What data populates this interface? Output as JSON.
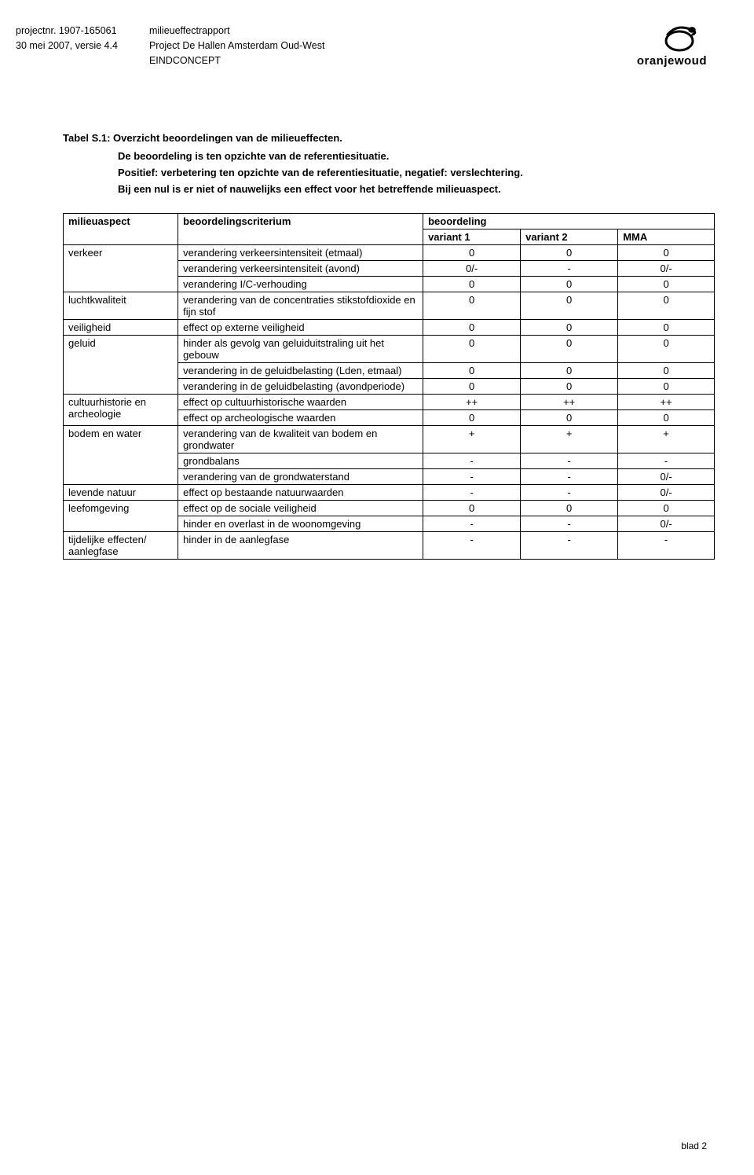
{
  "header": {
    "projectnr_label": "projectnr. 1907-165061",
    "date_line": "30 mei 2007, versie 4.4",
    "doc_title": "milieueffectrapport",
    "doc_subtitle": "Project De Hallen Amsterdam Oud-West",
    "doc_status": "EINDCONCEPT",
    "logo_text": "oranjewoud"
  },
  "intro": {
    "title": "Tabel S.1: Overzicht beoordelingen van de milieueffecten.",
    "line1": "De beoordeling is ten opzichte van de referentiesituatie.",
    "line2": "Positief: verbetering ten opzichte van de referentiesituatie, negatief: verslechtering.",
    "line3": "Bij een nul is er niet of nauwelijks een effect voor het betreffende milieuaspect."
  },
  "table": {
    "headers": {
      "aspect": "milieuaspect",
      "criterion": "beoordelingscriterium",
      "assessment": "beoordeling",
      "v1": "variant 1",
      "v2": "variant 2",
      "mma": "MMA"
    },
    "rows": [
      {
        "aspect": "verkeer",
        "aspect_rowspan": 3,
        "crit": "verandering verkeersintensiteit (etmaal)",
        "v1": "0",
        "v2": "0",
        "mma": "0"
      },
      {
        "crit": "verandering verkeersintensiteit (avond)",
        "v1": "0/-",
        "v2": "-",
        "mma": "0/-"
      },
      {
        "crit": "verandering I/C-verhouding",
        "v1": "0",
        "v2": "0",
        "mma": "0"
      },
      {
        "aspect": "luchtkwaliteit",
        "aspect_rowspan": 1,
        "crit": "verandering van de concentraties stikstofdioxide en fijn stof",
        "v1": "0",
        "v2": "0",
        "mma": "0"
      },
      {
        "aspect": "veiligheid",
        "aspect_rowspan": 1,
        "crit": "effect op externe veiligheid",
        "v1": "0",
        "v2": "0",
        "mma": "0"
      },
      {
        "aspect": "geluid",
        "aspect_rowspan": 3,
        "crit": "hinder als gevolg van geluiduitstraling uit het gebouw",
        "v1": "0",
        "v2": "0",
        "mma": "0"
      },
      {
        "crit": "verandering in de geluidbelasting (Lden, etmaal)",
        "v1": "0",
        "v2": "0",
        "mma": "0"
      },
      {
        "crit": "verandering in de geluidbelasting (avondperiode)",
        "v1": "0",
        "v2": "0",
        "mma": "0"
      },
      {
        "aspect": "cultuurhistorie en archeologie",
        "aspect_rowspan": 2,
        "crit": "effect op cultuurhistorische waarden",
        "v1": "++",
        "v2": "++",
        "mma": "++"
      },
      {
        "crit": "effect op archeologische waarden",
        "v1": "0",
        "v2": "0",
        "mma": "0"
      },
      {
        "aspect": "bodem en water",
        "aspect_rowspan": 3,
        "crit": "verandering van de kwaliteit van bodem en grondwater",
        "v1": "+",
        "v2": "+",
        "mma": "+"
      },
      {
        "crit": "grondbalans",
        "v1": "-",
        "v2": "-",
        "mma": "-"
      },
      {
        "crit": "verandering van de grondwaterstand",
        "v1": "-",
        "v2": "-",
        "mma": "0/-"
      },
      {
        "aspect": "levende natuur",
        "aspect_rowspan": 1,
        "crit": "effect op bestaande natuurwaarden",
        "v1": "-",
        "v2": "-",
        "mma": "0/-"
      },
      {
        "aspect": "leefomgeving",
        "aspect_rowspan": 2,
        "crit": "effect op de sociale veiligheid",
        "v1": "0",
        "v2": "0",
        "mma": "0"
      },
      {
        "crit": "hinder en overlast in de woonomgeving",
        "v1": "-",
        "v2": "-",
        "mma": "0/-"
      },
      {
        "aspect": "tijdelijke effecten/ aanlegfase",
        "aspect_rowspan": 1,
        "crit": "hinder in de aanlegfase",
        "v1": "-",
        "v2": "-",
        "mma": "-"
      }
    ]
  },
  "footer": {
    "page": "blad 2"
  }
}
